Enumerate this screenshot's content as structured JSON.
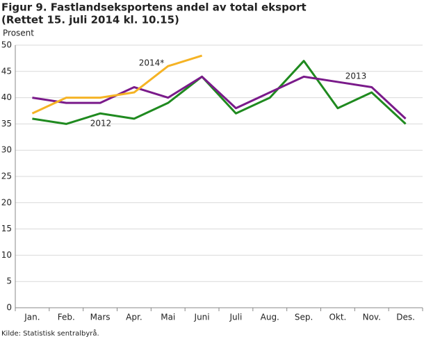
{
  "chart_data": {
    "type": "line",
    "title": "Figur 9. Fastlandseksportens andel av total eksport",
    "subtitle": "(Rettet 15. juli 2014 kl. 10.15)",
    "y_label": "Prosent",
    "source": "Kilde: Statistisk sentralbyrå.",
    "categories": [
      "Jan.",
      "Feb.",
      "Mars",
      "Apr.",
      "Mai",
      "Juni",
      "Juli",
      "Aug.",
      "Sep.",
      "Okt.",
      "Nov.",
      "Des."
    ],
    "series": [
      {
        "name": "2012",
        "color": "#1f8a1f",
        "values": [
          36,
          35,
          37,
          36,
          39,
          44,
          37,
          40,
          47,
          38,
          41,
          35
        ]
      },
      {
        "name": "2013",
        "color": "#7a1a8a",
        "values": [
          40,
          39,
          39,
          42,
          40,
          44,
          38,
          41,
          44,
          43,
          42,
          36
        ]
      },
      {
        "name": "2014*",
        "color": "#f5b324",
        "values": [
          37,
          40,
          40,
          41,
          46,
          48,
          null,
          null,
          null,
          null,
          null,
          null
        ]
      }
    ],
    "ylim": [
      0,
      50
    ],
    "yticks": [
      0,
      5,
      10,
      15,
      20,
      25,
      30,
      35,
      40,
      45,
      50
    ],
    "grid": true
  }
}
